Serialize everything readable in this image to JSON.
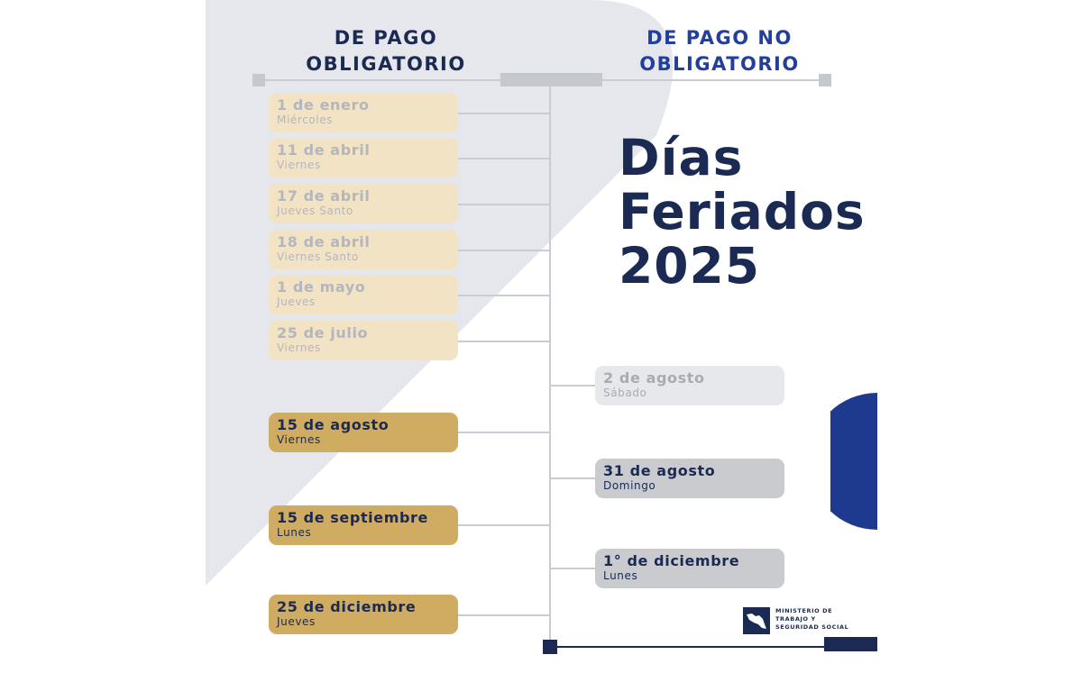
{
  "headings": {
    "left": [
      "DE PAGO",
      "OBLIGATORIO"
    ],
    "right": [
      "DE PAGO NO",
      "OBLIGATORIO"
    ]
  },
  "title": [
    "Días",
    "Feriados",
    "2025"
  ],
  "obligatorio": [
    {
      "date": "1 de enero",
      "day": "Miércoles",
      "style": "pale"
    },
    {
      "date": "11 de abril",
      "day": "Viernes",
      "style": "pale"
    },
    {
      "date": "17 de abril",
      "day": "Jueves Santo",
      "style": "pale"
    },
    {
      "date": "18 de abril",
      "day": "Viernes Santo",
      "style": "pale"
    },
    {
      "date": "1 de mayo",
      "day": "Jueves",
      "style": "pale"
    },
    {
      "date": "25 de julio",
      "day": "Viernes",
      "style": "pale"
    },
    {
      "date": "15 de agosto",
      "day": "Viernes",
      "style": "gold"
    },
    {
      "date": "15 de septiembre",
      "day": "Lunes",
      "style": "gold"
    },
    {
      "date": "25 de diciembre",
      "day": "Jueves",
      "style": "gold"
    }
  ],
  "no_obligatorio": [
    {
      "date": "2 de agosto",
      "day": "Sábado",
      "style": "light"
    },
    {
      "date": "31 de agosto",
      "day": "Domingo",
      "style": "mid"
    },
    {
      "date": "1° de diciembre",
      "day": "Lunes",
      "style": "mid"
    }
  ],
  "logo": {
    "lines": [
      "MINISTERIO DE",
      "TRABAJO Y",
      "SEGURIDAD SOCIAL"
    ],
    "icon": "costa-rica-map-icon"
  },
  "colors": {
    "navy": "#1b2a52",
    "blue": "#22409b",
    "gold": "#cfac62",
    "cream": "#f3e3c5",
    "gray": "#c9cbcf"
  }
}
